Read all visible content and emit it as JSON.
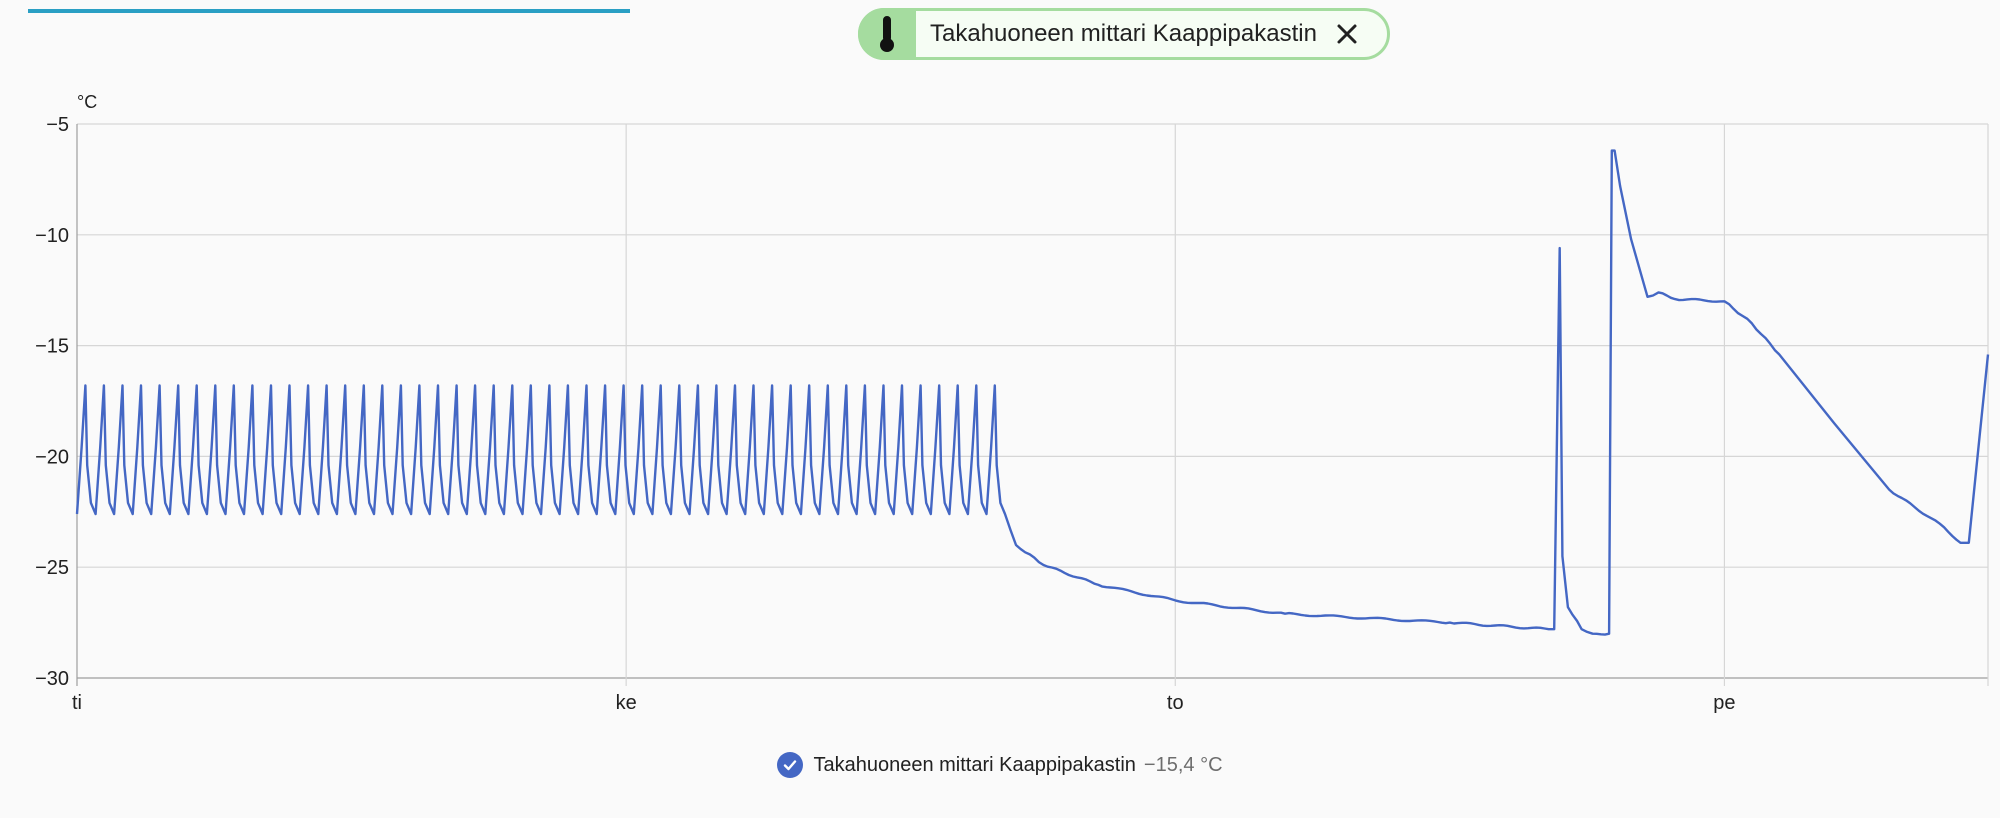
{
  "header": {
    "chip_label": "Takahuoneen mittari Kaappipakastin",
    "chip_icon": "thermometer-icon",
    "close_icon": "close-icon",
    "accent_color": "#2a9fc4",
    "chip_color": "#a5dc9f"
  },
  "legend": {
    "name": "Takahuoneen mittari Kaappipakastin",
    "value": "−15,4 °C",
    "checked": true
  },
  "chart_data": {
    "type": "line",
    "ylabel": "°C",
    "ylim": [
      -30,
      -5
    ],
    "yticks": [
      "−5",
      "−10",
      "−15",
      "−20",
      "−25",
      "−30"
    ],
    "ytick_values": [
      -5,
      -10,
      -15,
      -20,
      -25,
      -30
    ],
    "xlim": [
      0,
      3.48
    ],
    "xtick_labels": [
      "ti",
      "ke",
      "to",
      "pe"
    ],
    "xtick_values": [
      0,
      1,
      2,
      3
    ],
    "grid": true,
    "series": [
      {
        "name": "Takahuoneen mittari Kaappipakastin",
        "color": "#4467c4",
        "oscillation": {
          "start": 0.0,
          "end": 1.69,
          "cycles": 50,
          "min": -22.6,
          "max": -16.8
        },
        "x": [
          1.69,
          1.71,
          1.76,
          1.86,
          2.0,
          2.2,
          2.5,
          2.68,
          2.69,
          2.7,
          2.705,
          2.715,
          2.74,
          2.76,
          2.79,
          2.795,
          2.8,
          2.81,
          2.83,
          2.86,
          2.88,
          2.91,
          3.0,
          3.05,
          3.1,
          3.2,
          3.3,
          3.4,
          3.43,
          3.445,
          3.465,
          3.48
        ],
        "values": [
          -22.6,
          -24.0,
          -24.9,
          -25.8,
          -26.5,
          -27.1,
          -27.5,
          -27.8,
          -27.8,
          -10.6,
          -24.5,
          -26.8,
          -27.8,
          -28.0,
          -28.0,
          -6.2,
          -6.2,
          -7.8,
          -10.2,
          -12.8,
          -12.6,
          -12.9,
          -13.0,
          -14.0,
          -15.4,
          -18.5,
          -21.5,
          -23.2,
          -23.9,
          -23.9,
          -19.0,
          -15.4
        ]
      }
    ]
  }
}
